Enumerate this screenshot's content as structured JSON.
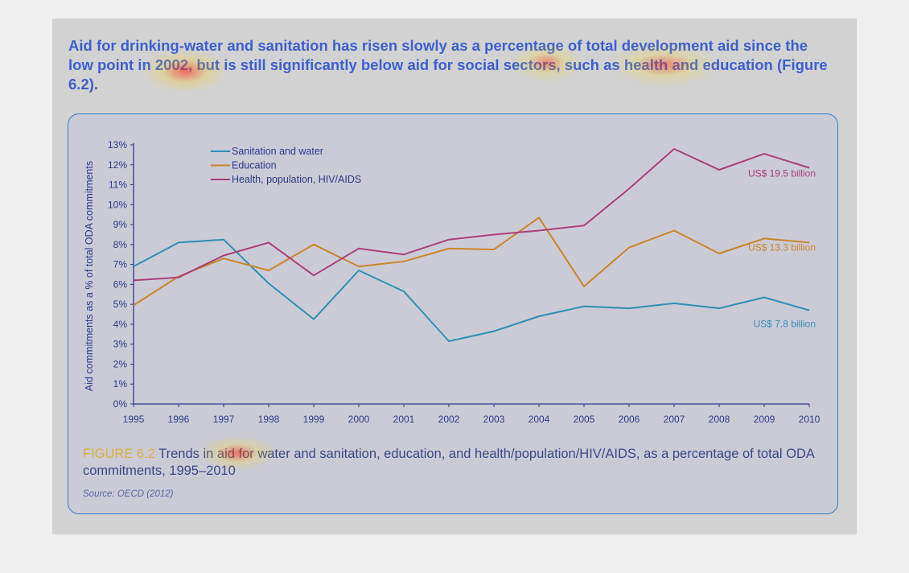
{
  "intro": {
    "text": "Aid for drinking-water and sanitation has risen slowly as a percentage of total development aid since the low point in 2002, but is still significantly below aid for social sectors, such as health and education (Figure 6.2)."
  },
  "caption": {
    "label": "FIGURE 6.2",
    "text": " Trends in aid for water and sanitation, education, and health/population/HIV/AIDS, as a percentage of total ODA commitments, 1995–2010"
  },
  "source": {
    "text": "Source: OECD (2012)"
  },
  "colors": {
    "sanitation": "#2f8fb4",
    "education": "#c9862a",
    "health": "#a8407a",
    "axis": "#2b3a8a"
  },
  "chart_data": {
    "type": "line",
    "x": [
      1995,
      1996,
      1997,
      1998,
      1999,
      2000,
      2001,
      2002,
      2003,
      2004,
      2005,
      2006,
      2007,
      2008,
      2009,
      2010
    ],
    "ylabel": "Aid commitments as a % of total ODA commitments",
    "xlabel": "",
    "ylim": [
      0,
      13
    ],
    "yticks": [
      "0%",
      "1%",
      "2%",
      "3%",
      "4%",
      "5%",
      "6%",
      "7%",
      "8%",
      "9%",
      "10%",
      "11%",
      "12%",
      "13%"
    ],
    "legend_position": "top-left",
    "series": [
      {
        "name": "Sanitation and water",
        "key": "sanitation",
        "values": [
          6.9,
          8.1,
          8.25,
          6.05,
          4.25,
          6.7,
          5.65,
          3.15,
          3.65,
          4.4,
          4.9,
          4.8,
          5.05,
          4.8,
          5.35,
          4.7
        ],
        "end_label": "US$ 7.8 billion"
      },
      {
        "name": "Education",
        "key": "education",
        "values": [
          4.95,
          6.4,
          7.3,
          6.7,
          8.0,
          6.9,
          7.15,
          7.8,
          7.75,
          9.35,
          5.9,
          7.85,
          8.7,
          7.55,
          8.3,
          8.1
        ],
        "end_label": "US$ 13.3 billion"
      },
      {
        "name": "Health, population, HIV/AIDS",
        "key": "health",
        "values": [
          6.2,
          6.35,
          7.45,
          8.1,
          6.45,
          7.8,
          7.5,
          8.25,
          8.5,
          8.7,
          8.95,
          10.8,
          12.8,
          11.75,
          12.55,
          11.85
        ],
        "end_label": "US$ 19.5 billion"
      }
    ]
  }
}
